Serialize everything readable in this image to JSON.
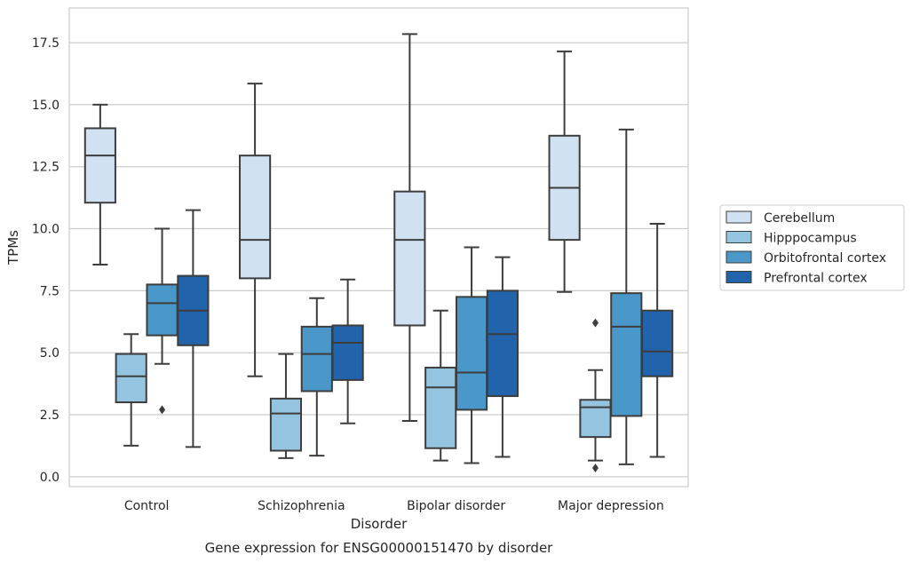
{
  "chart_data": {
    "type": "boxplot",
    "xlabel": "Disorder",
    "ylabel": "TPMs",
    "caption": "Gene expression for ENSG00000151470 by disorder",
    "ylim": [
      -0.4,
      18.9
    ],
    "yticks": [
      "0.0",
      "2.5",
      "5.0",
      "7.5",
      "10.0",
      "12.5",
      "15.0",
      "17.5"
    ],
    "ytick_values": [
      0,
      2.5,
      5,
      7.5,
      10,
      12.5,
      15,
      17.5
    ],
    "grid": "horizontal",
    "legend_position": "right",
    "categories": [
      "Control",
      "Schizophrenia",
      "Bipolar disorder",
      "Major depression"
    ],
    "series": [
      {
        "name": "Cerebellum",
        "color": "#d0e1f2",
        "boxes": [
          {
            "whislo": 8.55,
            "q1": 11.05,
            "med": 12.95,
            "q3": 14.05,
            "whishi": 15.0,
            "fliers": []
          },
          {
            "whislo": 4.05,
            "q1": 8.0,
            "med": 9.55,
            "q3": 12.95,
            "whishi": 15.85,
            "fliers": []
          },
          {
            "whislo": 2.25,
            "q1": 6.1,
            "med": 9.55,
            "q3": 11.5,
            "whishi": 17.85,
            "fliers": []
          },
          {
            "whislo": 7.45,
            "q1": 9.55,
            "med": 11.65,
            "q3": 13.75,
            "whishi": 17.15,
            "fliers": []
          }
        ]
      },
      {
        "name": "Hipppocampus",
        "color": "#94c4df",
        "boxes": [
          {
            "whislo": 1.25,
            "q1": 3.0,
            "med": 4.05,
            "q3": 4.95,
            "whishi": 5.75,
            "fliers": []
          },
          {
            "whislo": 0.75,
            "q1": 1.05,
            "med": 2.55,
            "q3": 3.15,
            "whishi": 4.95,
            "fliers": []
          },
          {
            "whislo": 0.65,
            "q1": 1.15,
            "med": 3.6,
            "q3": 4.4,
            "whishi": 6.7,
            "fliers": []
          },
          {
            "whislo": 0.65,
            "q1": 1.6,
            "med": 2.8,
            "q3": 3.1,
            "whishi": 4.3,
            "fliers": [
              0.35,
              6.2
            ]
          }
        ]
      },
      {
        "name": "Orbitofrontal cortex",
        "color": "#4a98c9",
        "boxes": [
          {
            "whislo": 4.55,
            "q1": 5.7,
            "med": 7.0,
            "q3": 7.75,
            "whishi": 10.0,
            "fliers": [
              2.7
            ]
          },
          {
            "whislo": 0.85,
            "q1": 3.45,
            "med": 4.95,
            "q3": 6.05,
            "whishi": 7.2,
            "fliers": []
          },
          {
            "whislo": 0.55,
            "q1": 2.7,
            "med": 4.2,
            "q3": 7.25,
            "whishi": 9.25,
            "fliers": []
          },
          {
            "whislo": 0.5,
            "q1": 2.45,
            "med": 6.05,
            "q3": 7.4,
            "whishi": 14.0,
            "fliers": []
          }
        ]
      },
      {
        "name": "Prefrontal cortex",
        "color": "#2164ab",
        "boxes": [
          {
            "whislo": 1.2,
            "q1": 5.3,
            "med": 6.7,
            "q3": 8.1,
            "whishi": 10.75,
            "fliers": []
          },
          {
            "whislo": 2.15,
            "q1": 3.9,
            "med": 5.4,
            "q3": 6.1,
            "whishi": 7.95,
            "fliers": []
          },
          {
            "whislo": 0.8,
            "q1": 3.25,
            "med": 5.75,
            "q3": 7.5,
            "whishi": 8.85,
            "fliers": []
          },
          {
            "whislo": 0.8,
            "q1": 4.05,
            "med": 5.05,
            "q3": 6.7,
            "whishi": 10.2,
            "fliers": []
          }
        ]
      }
    ]
  }
}
